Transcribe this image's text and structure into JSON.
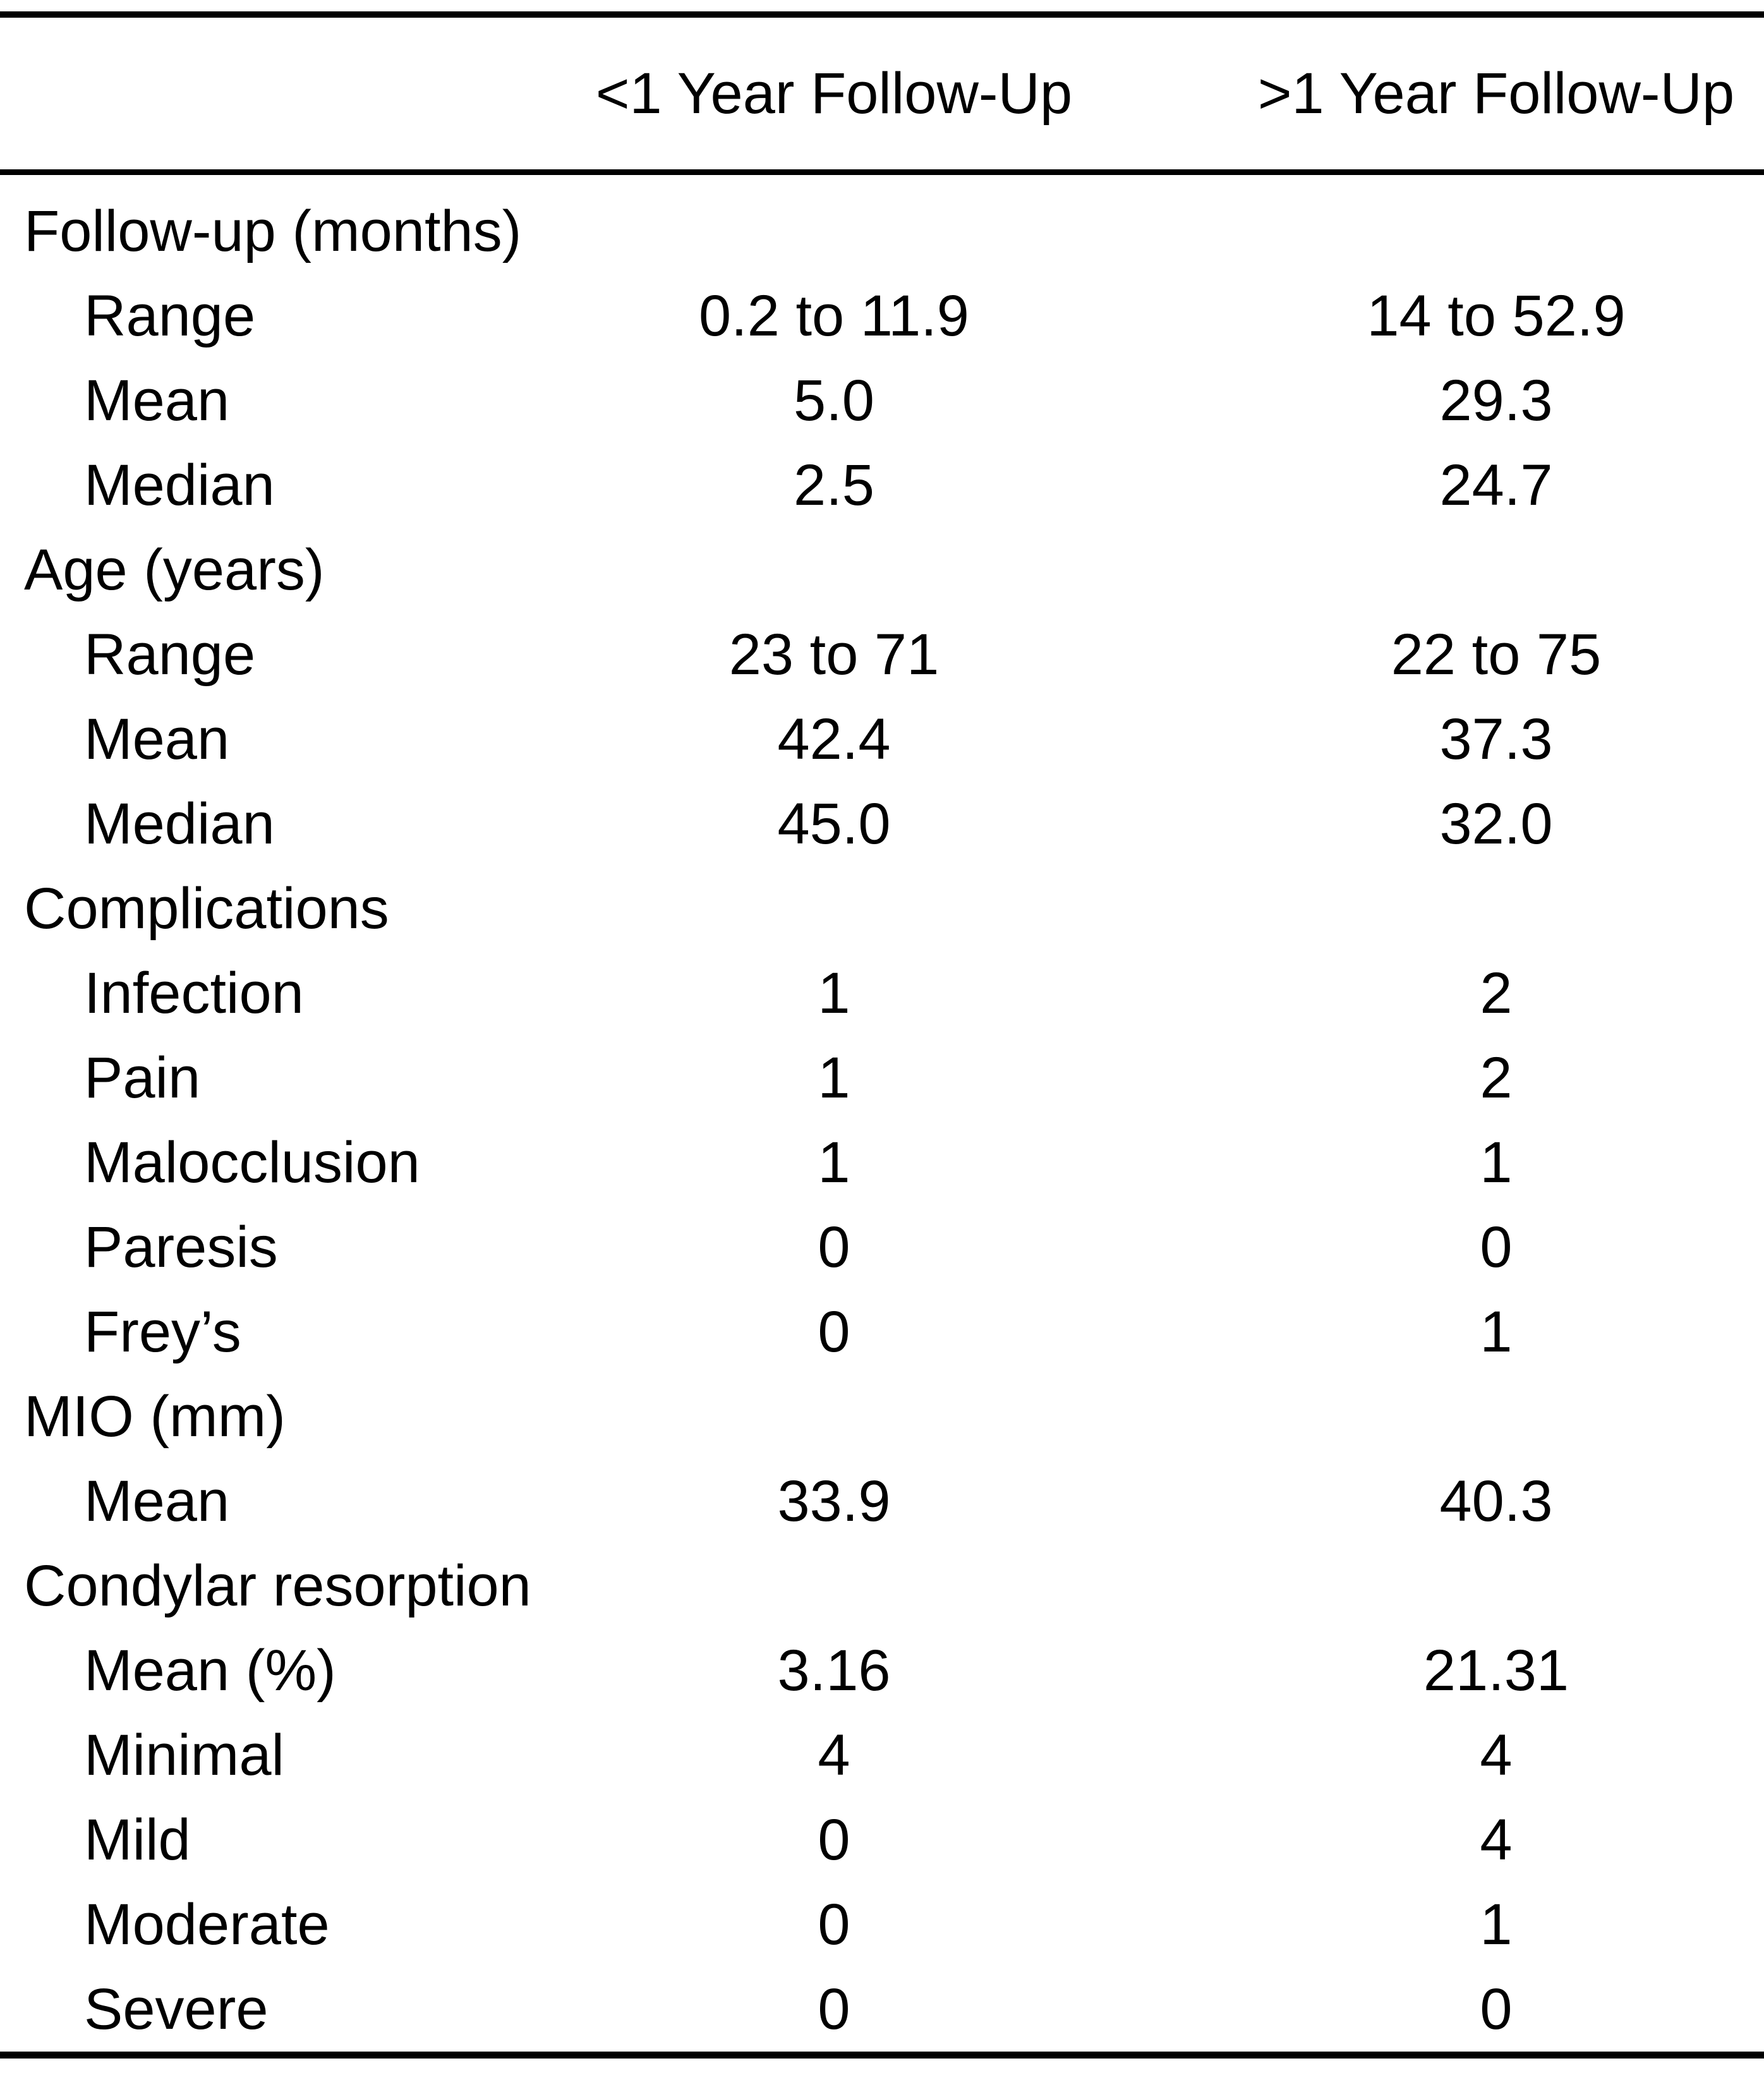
{
  "table": {
    "columns": [
      "",
      "<1 Year Follow-Up",
      ">1 Year Follow-Up"
    ],
    "sections": [
      {
        "label": "Follow-up (months)",
        "rows": [
          {
            "label": "Range",
            "col1": "0.2 to 11.9",
            "col2": "14 to 52.9"
          },
          {
            "label": "Mean",
            "col1": "5.0",
            "col2": "29.3"
          },
          {
            "label": "Median",
            "col1": "2.5",
            "col2": "24.7"
          }
        ]
      },
      {
        "label": "Age (years)",
        "rows": [
          {
            "label": "Range",
            "col1": "23 to 71",
            "col2": "22 to 75"
          },
          {
            "label": "Mean",
            "col1": "42.4",
            "col2": "37.3"
          },
          {
            "label": "Median",
            "col1": "45.0",
            "col2": "32.0"
          }
        ]
      },
      {
        "label": "Complications",
        "rows": [
          {
            "label": "Infection",
            "col1": "1",
            "col2": "2"
          },
          {
            "label": "Pain",
            "col1": "1",
            "col2": "2"
          },
          {
            "label": "Malocclusion",
            "col1": "1",
            "col2": "1"
          },
          {
            "label": "Paresis",
            "col1": "0",
            "col2": "0"
          },
          {
            "label": "Frey’s",
            "col1": "0",
            "col2": "1"
          }
        ]
      },
      {
        "label": "MIO (mm)",
        "rows": [
          {
            "label": "Mean",
            "col1": "33.9",
            "col2": "40.3"
          }
        ]
      },
      {
        "label": "Condylar resorption",
        "rows": [
          {
            "label": "Mean (%)",
            "col1": "3.16",
            "col2": "21.31"
          },
          {
            "label": "Minimal",
            "col1": "4",
            "col2": "4"
          },
          {
            "label": "Mild",
            "col1": "0",
            "col2": "4"
          },
          {
            "label": "Moderate",
            "col1": "0",
            "col2": "1"
          },
          {
            "label": "Severe",
            "col1": "0",
            "col2": "0"
          }
        ]
      }
    ]
  },
  "colors": {
    "text": "#000000",
    "background": "#ffffff",
    "rule": "#000000"
  }
}
